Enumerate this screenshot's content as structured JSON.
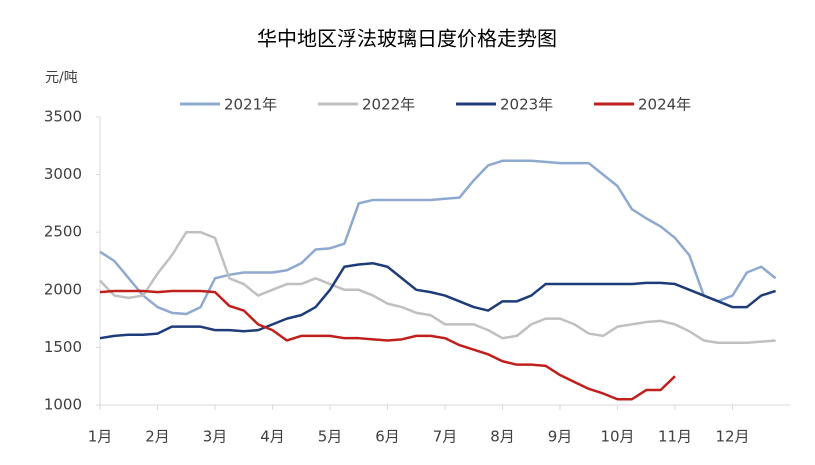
{
  "chart_data": {
    "type": "line",
    "title": "华中地区浮法玻璃日度价格走势图",
    "y_unit": "元/吨",
    "categories": [
      "1月",
      null,
      null,
      null,
      "2月",
      null,
      null,
      null,
      "3月",
      null,
      null,
      null,
      "4月",
      null,
      null,
      null,
      "5月",
      null,
      null,
      null,
      "6月",
      null,
      null,
      null,
      "7月",
      null,
      null,
      null,
      "8月",
      null,
      null,
      null,
      "9月",
      null,
      null,
      null,
      "10月",
      null,
      null,
      null,
      "11月",
      null,
      null,
      null,
      "12月",
      null,
      null,
      null
    ],
    "series": [
      {
        "name": "2021年",
        "color": "#8ea9d0",
        "values": [
          2330,
          2250,
          2100,
          1950,
          1850,
          1800,
          1790,
          1850,
          2100,
          2130,
          2150,
          2150,
          2150,
          2170,
          2230,
          2350,
          2360,
          2400,
          2750,
          2780,
          2780,
          2780,
          2780,
          2780,
          2790,
          2800,
          2950,
          3080,
          3120,
          3120,
          3120,
          3110,
          3100,
          3100,
          3100,
          3000,
          2900,
          2700,
          2620,
          2550,
          2450,
          2300,
          1950,
          1900,
          1950,
          2150,
          2200,
          2100
        ]
      },
      {
        "name": "2022年",
        "color": "#c0c0c0",
        "values": [
          2080,
          1950,
          1930,
          1950,
          2140,
          2300,
          2500,
          2500,
          2450,
          2100,
          2050,
          1950,
          2000,
          2050,
          2050,
          2100,
          2050,
          2000,
          2000,
          1950,
          1880,
          1850,
          1800,
          1780,
          1700,
          1700,
          1700,
          1650,
          1580,
          1600,
          1700,
          1750,
          1750,
          1700,
          1620,
          1600,
          1680,
          1700,
          1720,
          1730,
          1700,
          1640,
          1560,
          1540,
          1540,
          1540,
          1550,
          1560
        ]
      },
      {
        "name": "2023年",
        "color": "#1f3c7a",
        "values": [
          1580,
          1600,
          1610,
          1610,
          1620,
          1680,
          1680,
          1680,
          1650,
          1650,
          1640,
          1650,
          1700,
          1750,
          1780,
          1850,
          2000,
          2200,
          2220,
          2230,
          2200,
          2100,
          2000,
          1980,
          1950,
          1900,
          1850,
          1820,
          1900,
          1900,
          1950,
          2050,
          2050,
          2050,
          2050,
          2050,
          2050,
          2050,
          2060,
          2060,
          2050,
          2000,
          1950,
          1900,
          1850,
          1850,
          1950,
          1990
        ]
      },
      {
        "name": "2024年",
        "color": "#c0201c",
        "values": [
          1980,
          1990,
          1990,
          1990,
          1980,
          1990,
          1990,
          1990,
          1980,
          1860,
          1820,
          1700,
          1650,
          1560,
          1600,
          1600,
          1600,
          1580,
          1580,
          1570,
          1560,
          1570,
          1600,
          1600,
          1580,
          1520,
          1480,
          1440,
          1380,
          1350,
          1350,
          1340,
          1260,
          1200,
          1140,
          1100,
          1050,
          1050,
          1130,
          1130,
          1250,
          null,
          null,
          null,
          null,
          null,
          null,
          null
        ]
      }
    ],
    "ylim": [
      1000,
      3500
    ],
    "yticks": [
      1000,
      1500,
      2000,
      2500,
      3000,
      3500
    ]
  }
}
